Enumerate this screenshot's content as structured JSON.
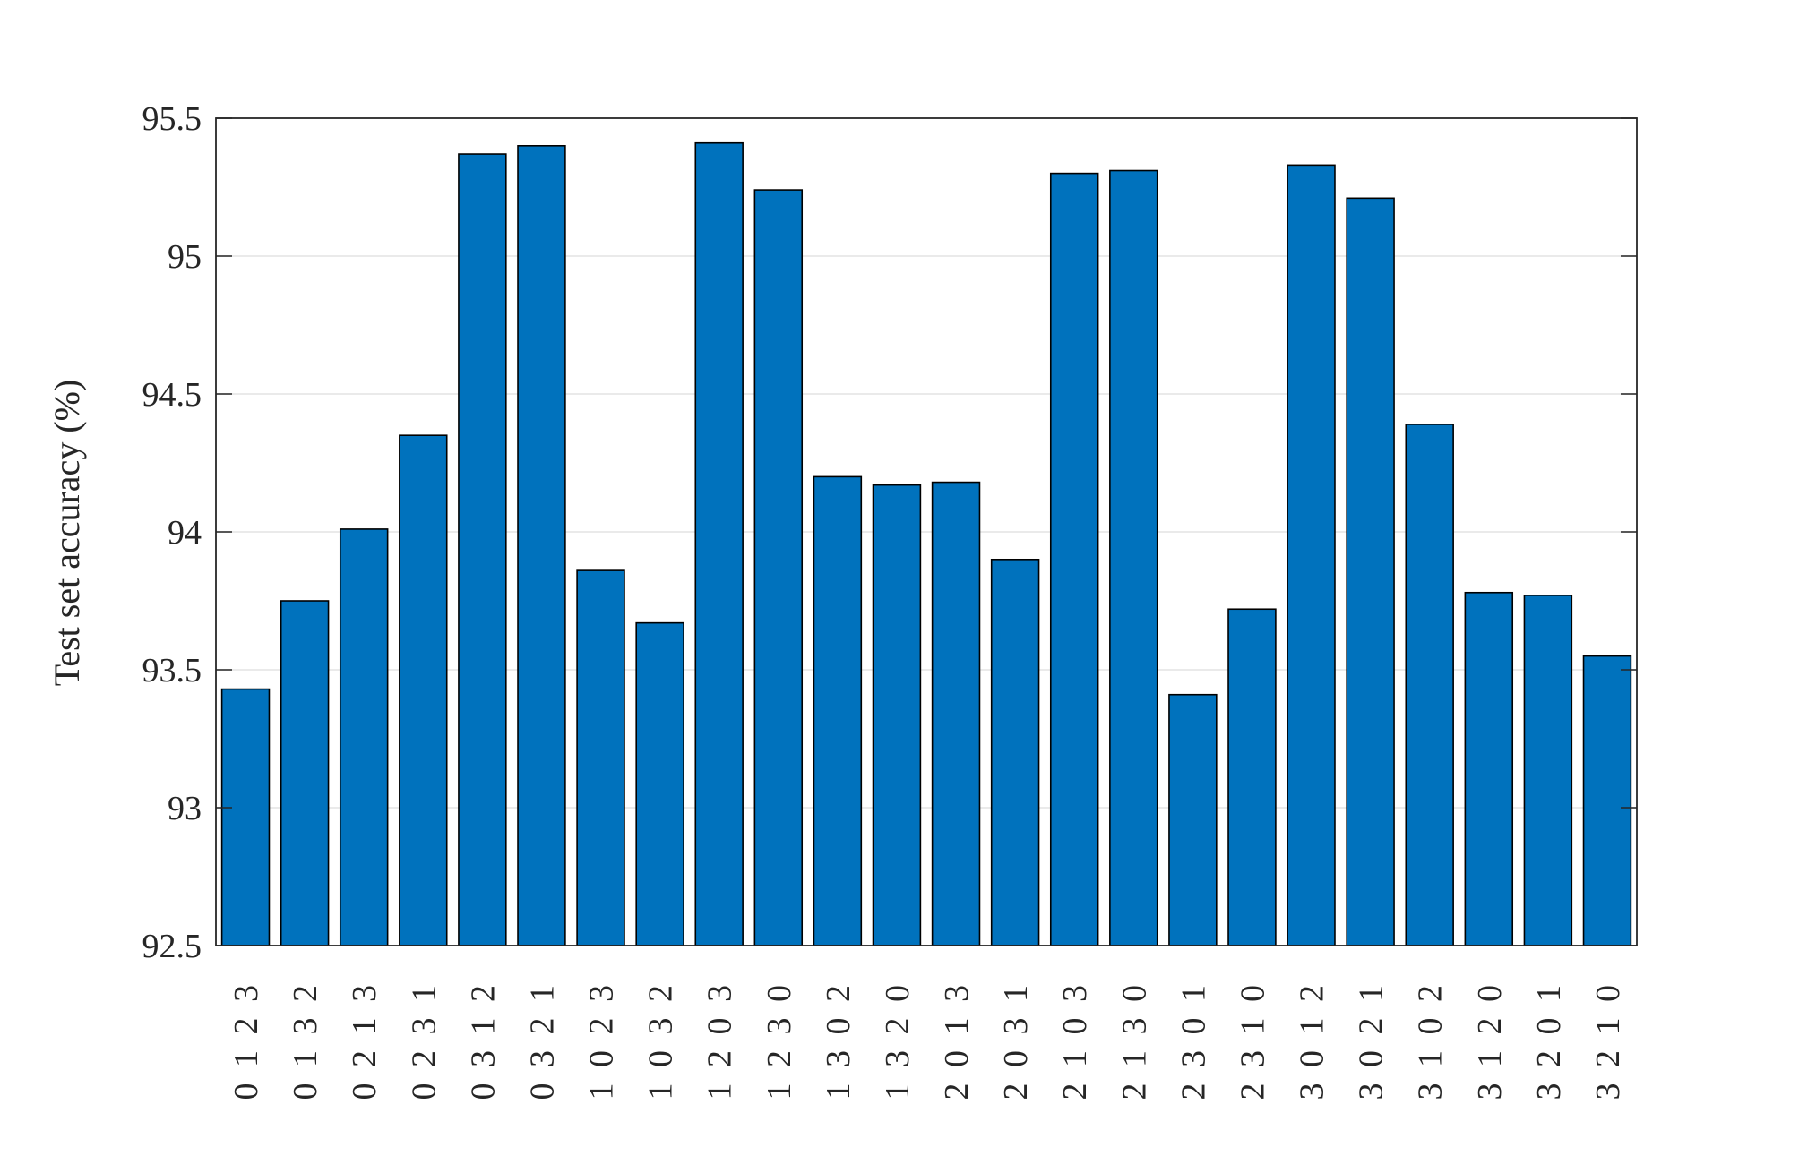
{
  "chart_data": {
    "type": "bar",
    "title": "",
    "xlabel": "",
    "ylabel": "Test set accuracy (%)",
    "ylim": [
      92.5,
      95.5
    ],
    "yticks": [
      "92.5",
      "93",
      "93.5",
      "94",
      "94.5",
      "95",
      "95.5"
    ],
    "grid": "horizontal",
    "bar_color": "#0072BD",
    "edge_color": "#000000",
    "categories": [
      "0 1 2 3",
      "0 1 3 2",
      "0 2 1 3",
      "0 2 3 1",
      "0 3 1 2",
      "0 3 2 1",
      "1 0 2 3",
      "1 0 3 2",
      "1 2 0 3",
      "1 2 3 0",
      "1 3 0 2",
      "1 3 2 0",
      "2 0 1 3",
      "2 0 3 1",
      "2 1 0 3",
      "2 1 3 0",
      "2 3 0 1",
      "2 3 1 0",
      "3 0 1 2",
      "3 0 2 1",
      "3 1 0 2",
      "3 1 2 0",
      "3 2 0 1",
      "3 2 1 0"
    ],
    "values": [
      93.43,
      93.75,
      94.01,
      94.35,
      95.37,
      95.4,
      93.86,
      93.67,
      95.41,
      95.24,
      94.2,
      94.17,
      94.18,
      93.9,
      95.3,
      95.31,
      93.41,
      93.72,
      95.33,
      95.21,
      94.39,
      93.78,
      93.77,
      93.55
    ]
  }
}
